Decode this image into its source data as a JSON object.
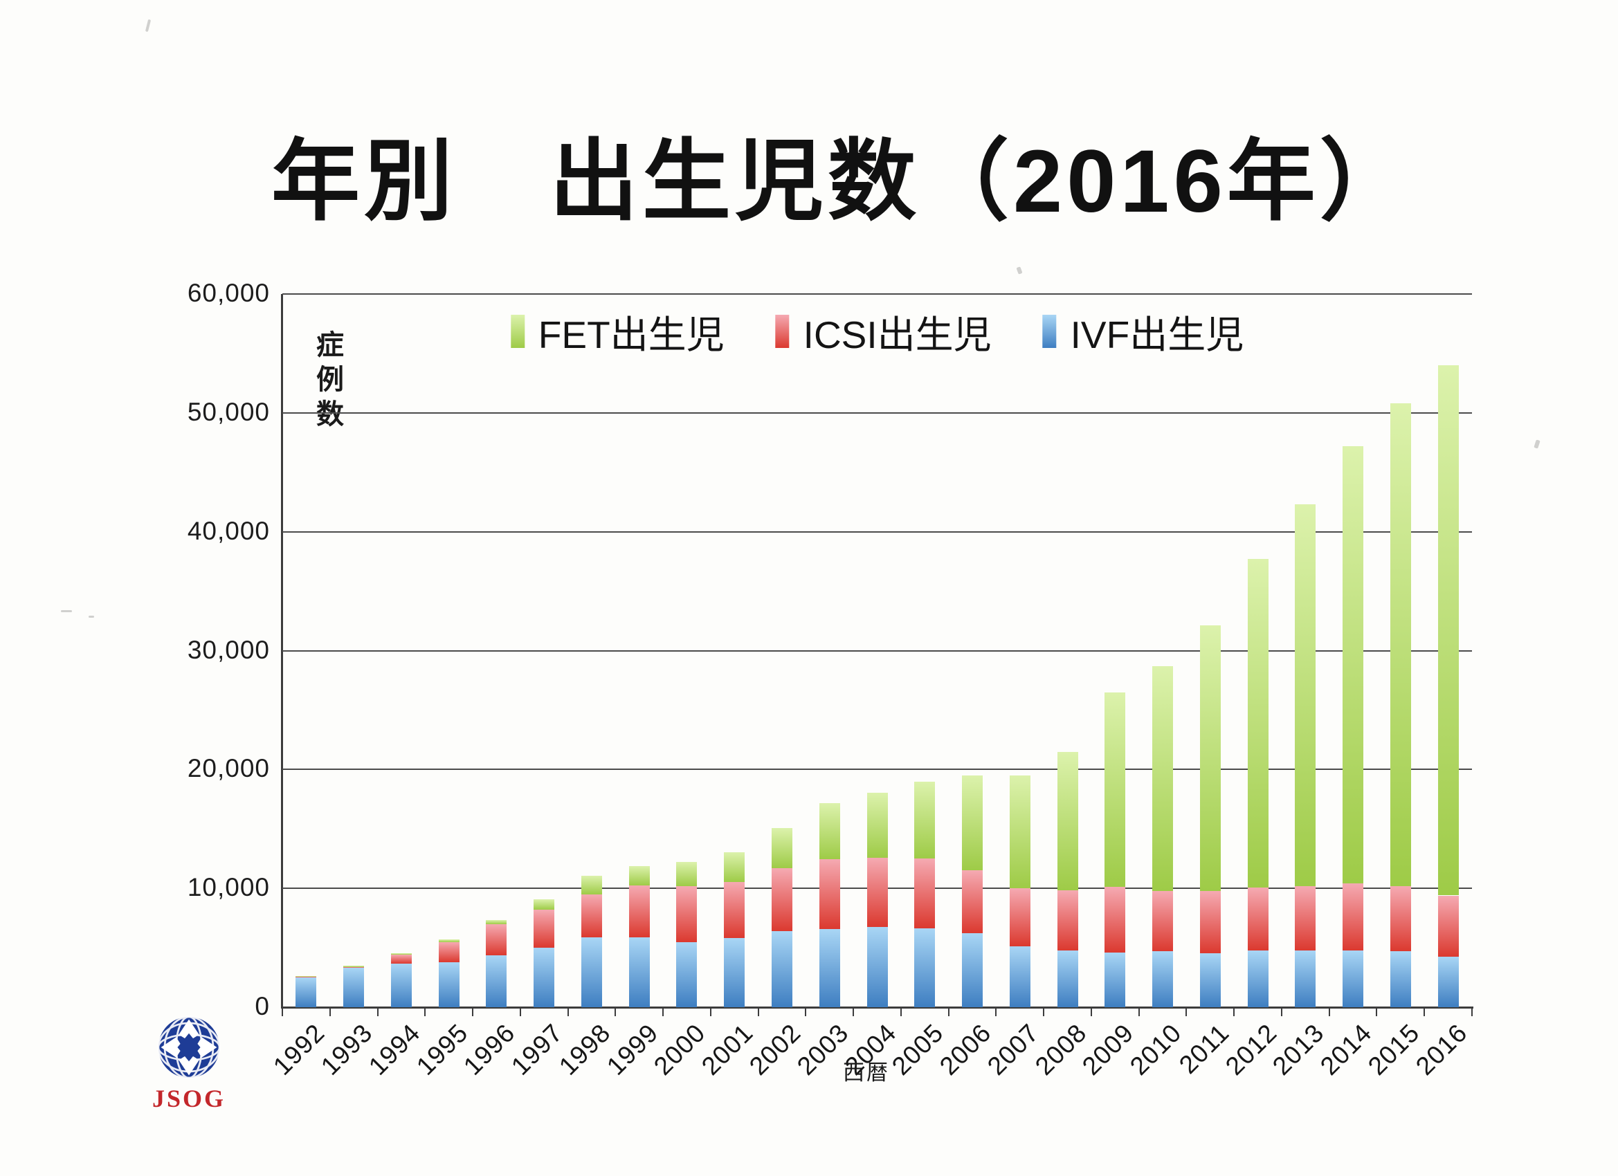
{
  "title": "年別　出生児数（2016年）",
  "y_axis": {
    "unit_label": "症例数",
    "ticks": [
      "60,000",
      "50,000",
      "40,000",
      "30,000",
      "20,000",
      "10,000",
      "0"
    ],
    "max": 60000,
    "min": 0,
    "step": 10000
  },
  "x_axis": {
    "unit_label": "西暦"
  },
  "legend": [
    {
      "label": "FET出生児",
      "color_top": "#DCF2AC",
      "color_bottom": "#9ECB47"
    },
    {
      "label": "ICSI出生児",
      "color_top": "#F5AAB2",
      "color_bottom": "#DB392F"
    },
    {
      "label": "IVF出生児",
      "color_top": "#A9D6F5",
      "color_bottom": "#3E7EC1"
    }
  ],
  "logo": {
    "text": "JSOG",
    "circle_color": "#1E3C96",
    "text_color": "#C3272B"
  },
  "chart_data": {
    "type": "bar",
    "stacked": true,
    "title": "年別　出生児数（2016年）",
    "xlabel": "西暦",
    "ylabel": "症例数",
    "ylim": [
      0,
      60000
    ],
    "ytick_step": 10000,
    "grid": true,
    "legend_position": "top-center",
    "categories": [
      "1992",
      "1993",
      "1994",
      "1995",
      "1996",
      "1997",
      "1998",
      "1999",
      "2000",
      "2001",
      "2002",
      "2003",
      "2004",
      "2005",
      "2006",
      "2007",
      "2008",
      "2009",
      "2010",
      "2011",
      "2012",
      "2013",
      "2014",
      "2015",
      "2016"
    ],
    "stack_order_bottom_to_top": [
      "IVF出生児",
      "ICSI出生児",
      "FET出生児"
    ],
    "series": [
      {
        "name": "IVF出生児",
        "color_top": "#A9D6F5",
        "color_bottom": "#3E7EC1",
        "values": [
          2500,
          3300,
          3650,
          3800,
          4350,
          5000,
          5850,
          5900,
          5500,
          5800,
          6400,
          6550,
          6750,
          6650,
          6200,
          5100,
          4800,
          4600,
          4700,
          4550,
          4800,
          4800,
          4800,
          4700,
          4250
        ]
      },
      {
        "name": "ICSI出生児",
        "color_top": "#F5AAB2",
        "color_bottom": "#DB392F",
        "values": [
          40,
          100,
          750,
          1650,
          2650,
          3200,
          3650,
          4350,
          4700,
          4750,
          5300,
          5900,
          5800,
          5850,
          5300,
          4900,
          5050,
          5500,
          5100,
          5250,
          5250,
          5400,
          5600,
          5500,
          5150
        ]
      },
      {
        "name": "FET出生児",
        "color_top": "#DCF2AC",
        "color_bottom": "#9ECB47",
        "values": [
          70,
          70,
          150,
          250,
          350,
          900,
          1550,
          1600,
          2000,
          2500,
          3350,
          4700,
          5500,
          6500,
          8000,
          9500,
          11650,
          16400,
          18900,
          22300,
          27650,
          32100,
          36800,
          40600,
          44600
        ]
      }
    ]
  }
}
